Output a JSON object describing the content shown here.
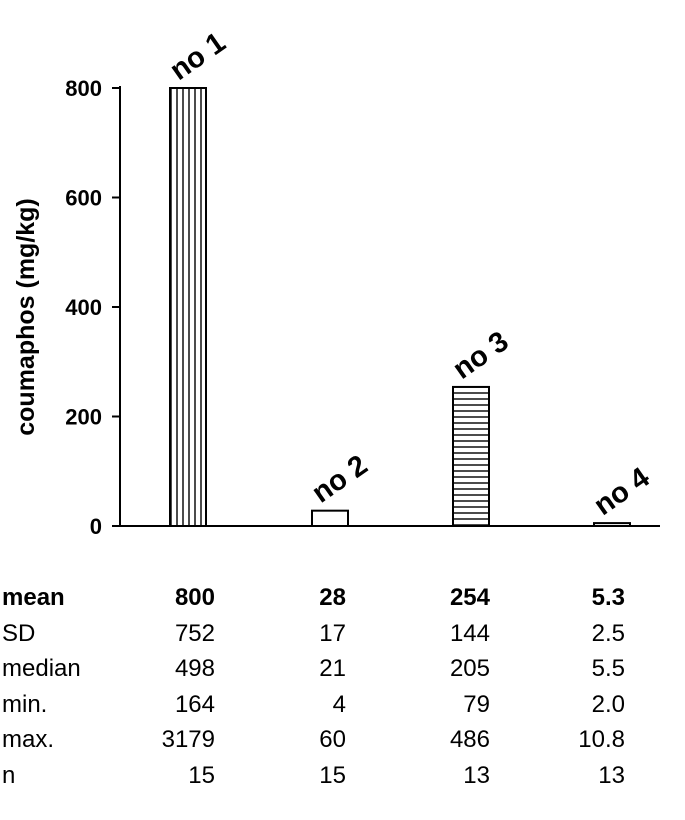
{
  "chart_data": {
    "type": "bar",
    "categories": [
      "no 1",
      "no 2",
      "no 3",
      "no 4"
    ],
    "values": [
      800,
      28,
      254,
      5.3
    ],
    "ylabel": "coumaphos (mg/kg)",
    "yticks": [
      0,
      200,
      400,
      600,
      800
    ],
    "ylim": [
      0,
      800
    ],
    "patterns": [
      "vertical-stripes",
      "none",
      "horizontal-stripes",
      "none"
    ],
    "colors": {
      "stroke": "#000000",
      "fill": "#ffffff"
    }
  },
  "stats_table": {
    "rows": [
      {
        "label": "mean",
        "bold": true,
        "values": [
          "800",
          "28",
          "254",
          "5.3"
        ]
      },
      {
        "label": "SD",
        "bold": false,
        "values": [
          "752",
          "17",
          "144",
          "2.5"
        ]
      },
      {
        "label": "median",
        "bold": false,
        "values": [
          "498",
          "21",
          "205",
          "5.5"
        ]
      },
      {
        "label": "min.",
        "bold": false,
        "values": [
          "164",
          "4",
          "79",
          "2.0"
        ]
      },
      {
        "label": "max.",
        "bold": false,
        "values": [
          "3179",
          "60",
          "486",
          "10.8"
        ]
      },
      {
        "label": "n",
        "bold": false,
        "values": [
          "15",
          "15",
          "13",
          "13"
        ]
      }
    ]
  }
}
